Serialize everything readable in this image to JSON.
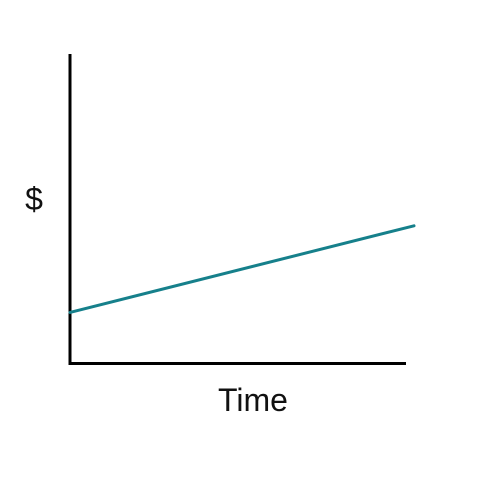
{
  "chart_data": {
    "type": "line",
    "title": "",
    "xlabel": "Time",
    "ylabel": "$",
    "xlim": [
      0,
      1
    ],
    "ylim": [
      0,
      1
    ],
    "grid": false,
    "x_ticks": false,
    "y_ticks": false,
    "series": [
      {
        "color": "#16808b",
        "x": [
          0,
          1
        ],
        "y": [
          0.165,
          0.445
        ]
      }
    ]
  }
}
